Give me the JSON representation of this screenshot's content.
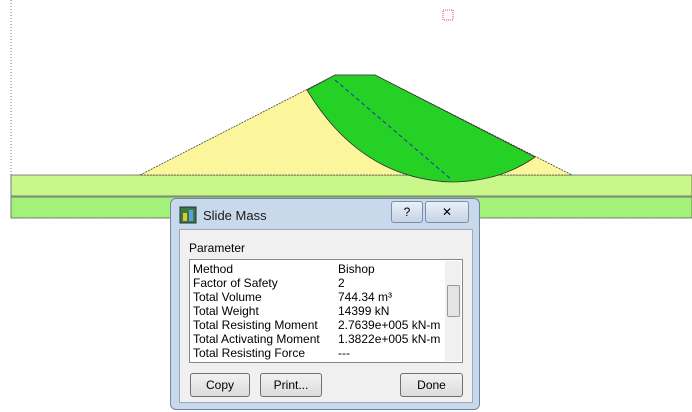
{
  "dialog": {
    "title": "Slide Mass",
    "help_button": "?",
    "group_label": "Parameter",
    "rows": [
      [
        "Method",
        "Bishop"
      ],
      [
        "Factor of Safety",
        "2"
      ],
      [
        "Total Volume",
        "744.34 m³"
      ],
      [
        "Total Weight",
        "14399 kN"
      ],
      [
        "Total Resisting Moment",
        "2.7639e+005 kN-m"
      ],
      [
        "Total Activating Moment",
        "1.3822e+005 kN-m"
      ],
      [
        "Total Resisting Force",
        "---"
      ]
    ],
    "buttons": [
      "Copy",
      "Print...",
      "Done"
    ]
  }
}
